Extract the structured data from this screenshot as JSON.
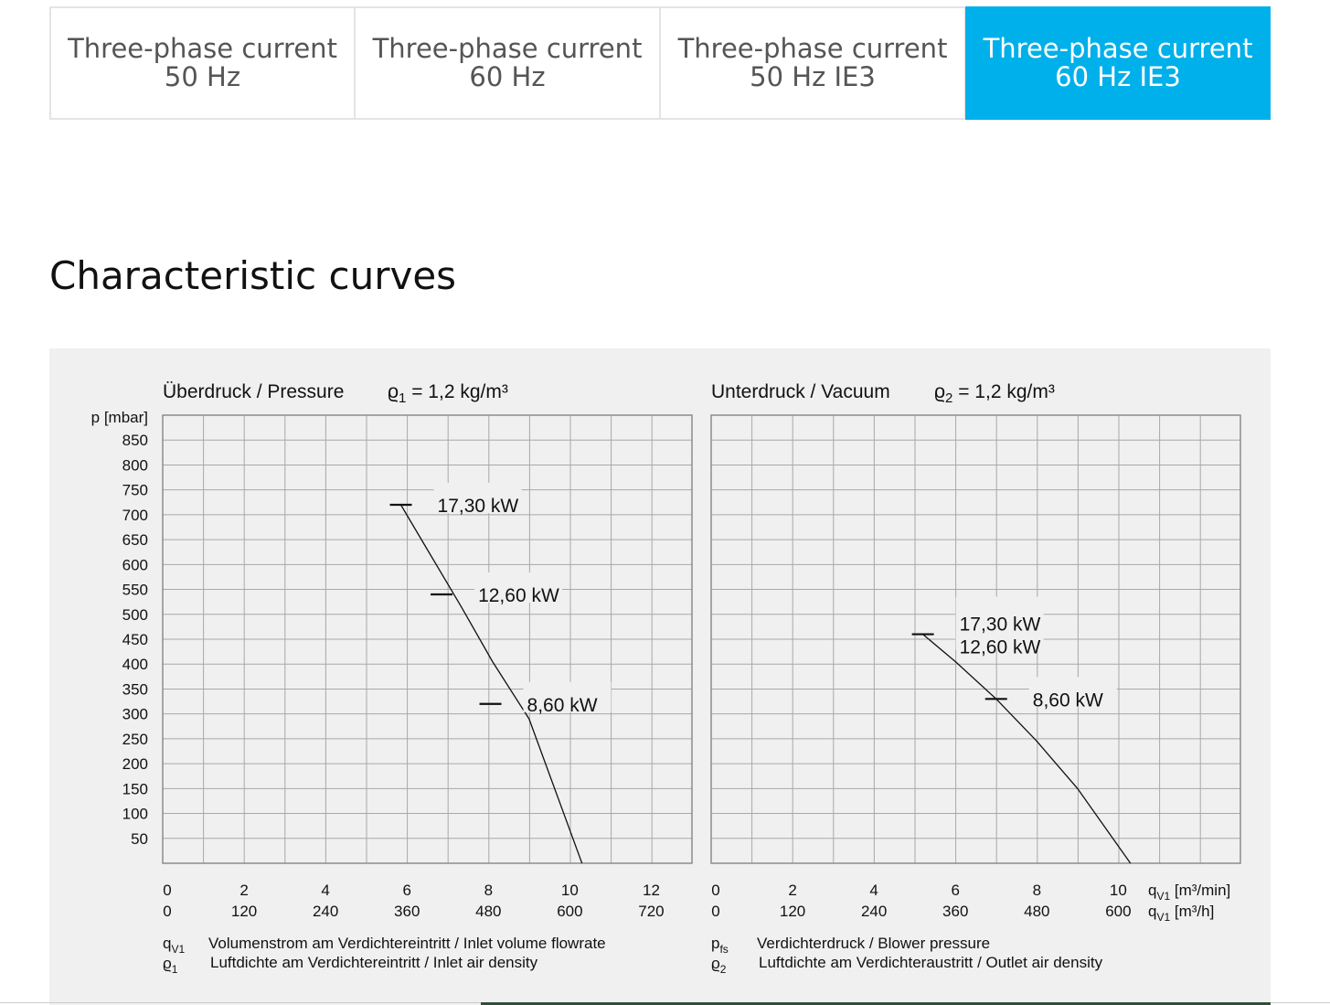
{
  "tabs": [
    {
      "line1": "Three-phase current",
      "line2": "50 Hz",
      "active": false
    },
    {
      "line1": "Three-phase current",
      "line2": "60 Hz",
      "active": false
    },
    {
      "line1": "Three-phase current",
      "line2": "50 Hz IE3",
      "active": false
    },
    {
      "line1": "Three-phase current",
      "line2": "60 Hz IE3",
      "active": true
    }
  ],
  "section_title": "Characteristic curves",
  "colors": {
    "accent": "#00b0ea",
    "panel": "#f0f0f0",
    "grid": "#a8a8a8"
  },
  "chart_data": [
    {
      "type": "line",
      "title": "Überdruck / Pressure",
      "density_label": {
        "symbol": "ϱ",
        "sub": "1",
        "rest": " = 1,2 kg/m³"
      },
      "ylabel": "p [mbar]",
      "ylim": [
        0,
        900
      ],
      "yticks": [
        850,
        800,
        750,
        700,
        650,
        600,
        550,
        500,
        450,
        400,
        350,
        300,
        250,
        200,
        150,
        100,
        50
      ],
      "xlim": [
        0,
        13
      ],
      "x_ticks_min": [
        "0",
        "2",
        "4",
        "6",
        "8",
        "10",
        "12"
      ],
      "x_ticks_h": [
        "0",
        "120",
        "240",
        "360",
        "480",
        "600",
        "720"
      ],
      "series": [
        {
          "x": [
            5.85,
            6.5,
            7.3,
            8.1,
            9.0,
            10.3
          ],
          "y": [
            720,
            630,
            520,
            405,
            290,
            0
          ]
        }
      ],
      "markers": [
        {
          "x": 5.85,
          "y": 720,
          "label": "17,30 kW"
        },
        {
          "x": 6.85,
          "y": 540,
          "label": "12,60 kW"
        },
        {
          "x": 8.05,
          "y": 320,
          "label": "8,60 kW"
        }
      ],
      "legend_lines": [
        {
          "sym": "q",
          "sub": "V1",
          "text": "Volumenstrom am Verdichtereintritt / Inlet volume flowrate"
        },
        {
          "sym": "ϱ",
          "sub": "1",
          "text": "Luftdichte am Verdichtereintritt / Inlet air density"
        }
      ]
    },
    {
      "type": "line",
      "title": "Unterdruck / Vacuum",
      "density_label": {
        "symbol": "ϱ",
        "sub": "2",
        "rest": " = 1,2 kg/m³"
      },
      "ylim": [
        0,
        900
      ],
      "xlim": [
        0,
        13
      ],
      "x_ticks_min": [
        "0",
        "2",
        "4",
        "6",
        "8",
        "10"
      ],
      "x_ticks_h": [
        "0",
        "120",
        "240",
        "360",
        "480",
        "600"
      ],
      "x_unit_min": {
        "sym": "q",
        "sub": "V1",
        "unit": " [m³/min]"
      },
      "x_unit_h": {
        "sym": "q",
        "sub": "V1",
        "unit": " [m³/h]"
      },
      "series": [
        {
          "x": [
            5.2,
            6.0,
            7.0,
            8.0,
            9.0,
            10.3
          ],
          "y": [
            460,
            405,
            330,
            245,
            150,
            0
          ]
        }
      ],
      "markers": [
        {
          "x": 5.2,
          "y": 460,
          "label": "17,30 kW\n12,60 kW"
        },
        {
          "x": 7.0,
          "y": 330,
          "label": "8,60 kW"
        }
      ],
      "legend_lines": [
        {
          "sym": "p",
          "sub": "fs",
          "text": "Verdichterdruck / Blower pressure"
        },
        {
          "sym": "ϱ",
          "sub": "2",
          "text": "Luftdichte am Verdichteraustritt / Outlet air density"
        }
      ]
    }
  ]
}
